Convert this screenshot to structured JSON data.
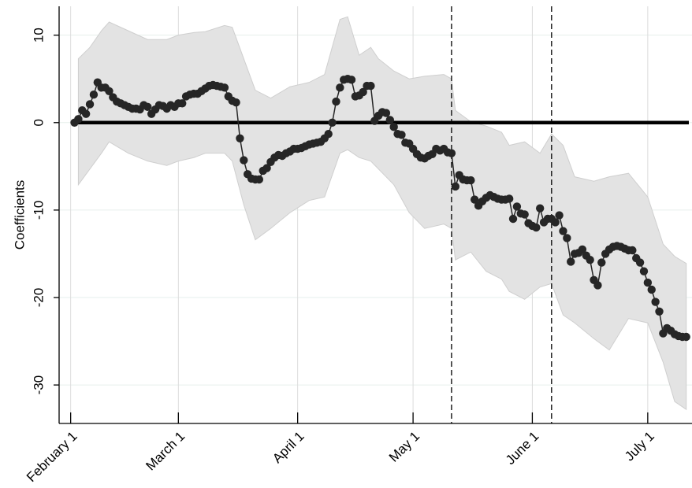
{
  "chart_data": {
    "type": "line",
    "y_label": "Coefficients",
    "x": [
      1,
      2,
      3,
      4,
      5,
      6,
      7,
      8,
      9,
      10,
      11,
      12,
      13,
      14,
      15,
      16,
      17,
      18,
      19,
      20,
      21,
      22,
      23,
      24,
      25,
      26,
      27,
      28,
      29,
      30,
      31,
      32,
      33,
      34,
      35,
      36,
      37,
      38,
      39,
      40,
      41,
      42,
      43,
      44,
      45,
      46,
      47,
      48,
      49,
      50,
      51,
      52,
      53,
      54,
      55,
      56,
      57,
      58,
      59,
      60,
      61,
      62,
      63,
      64,
      65,
      66,
      67,
      68,
      69,
      70,
      71,
      72,
      73,
      74,
      75,
      76,
      77,
      78,
      79,
      80,
      81,
      82,
      83,
      84,
      85,
      86,
      87,
      88,
      89,
      90,
      91,
      92,
      93,
      94,
      95,
      96,
      97,
      98,
      99,
      100,
      101,
      102,
      103,
      104,
      105,
      106,
      107,
      108,
      109,
      110,
      111,
      112,
      113,
      114,
      115,
      116,
      117,
      118,
      119,
      120,
      121,
      122,
      123,
      124,
      125,
      126,
      127,
      128,
      129,
      130,
      131,
      132,
      133,
      134,
      135,
      136,
      137,
      138,
      139,
      140,
      141,
      142,
      143,
      144,
      145,
      146,
      147,
      148,
      149,
      150,
      151,
      152,
      153,
      154,
      155,
      156,
      157,
      158,
      159,
      160
    ],
    "values": [
      0,
      0.4,
      1.4,
      1.0,
      2.1,
      3.2,
      4.6,
      4.0,
      4.0,
      3.6,
      2.9,
      2.4,
      2.2,
      2.0,
      1.8,
      1.6,
      1.6,
      1.5,
      2.0,
      1.8,
      1.0,
      1.5,
      2.0,
      1.9,
      1.6,
      2.0,
      1.8,
      2.2,
      2.2,
      3.0,
      3.2,
      3.3,
      3.3,
      3.6,
      3.9,
      4.2,
      4.3,
      4.2,
      4.1,
      4.0,
      3.0,
      2.5,
      2.3,
      -1.8,
      -4.3,
      -5.9,
      -6.4,
      -6.5,
      -6.5,
      -5.5,
      -5.2,
      -4.5,
      -4.0,
      -3.7,
      -3.8,
      -3.5,
      -3.3,
      -3.0,
      -3.0,
      -2.9,
      -2.7,
      -2.5,
      -2.4,
      -2.3,
      -2.2,
      -1.8,
      -1.3,
      0.0,
      2.4,
      4.0,
      4.9,
      5.0,
      4.9,
      3.0,
      3.1,
      3.5,
      4.2,
      4.2,
      0.2,
      0.8,
      1.2,
      1.1,
      0.3,
      -0.5,
      -1.3,
      -1.4,
      -2.3,
      -2.4,
      -3.0,
      -3.6,
      -4.0,
      -4.1,
      -3.8,
      -3.6,
      -3.0,
      -3.2,
      -3.0,
      -3.4,
      -3.5,
      -7.3,
      -6.0,
      -6.5,
      -6.6,
      -6.6,
      -8.8,
      -9.5,
      -9.0,
      -8.6,
      -8.3,
      -8.5,
      -8.7,
      -8.8,
      -8.8,
      -8.7,
      -11.0,
      -9.6,
      -10.4,
      -10.5,
      -11.5,
      -11.8,
      -12.0,
      -9.8,
      -11.4,
      -11.0,
      -11.0,
      -11.4,
      -10.6,
      -12.4,
      -13.2,
      -15.9,
      -15.0,
      -14.9,
      -14.5,
      -15.2,
      -15.7,
      -18.0,
      -18.6,
      -16.0,
      -15.0,
      -14.5,
      -14.2,
      -14.1,
      -14.2,
      -14.4,
      -14.6,
      -14.6,
      -15.5,
      -16.0,
      -17.0,
      -18.3,
      -19.1,
      -20.5,
      -21.6,
      -24.1,
      -23.5,
      -23.8,
      -24.2,
      -24.4,
      -24.5,
      -24.5
    ],
    "color": "#262626",
    "ci": {
      "x": [
        2,
        5,
        8,
        10,
        15,
        20,
        25,
        28,
        32,
        35,
        40,
        42,
        45,
        48,
        52,
        57,
        62,
        66,
        70,
        72,
        75,
        78,
        80,
        84,
        88,
        92,
        97,
        99,
        100,
        104,
        108,
        112,
        114,
        118,
        122,
        125,
        128,
        131,
        136,
        140,
        145,
        150,
        154,
        157,
        160
      ],
      "upper": [
        7.3,
        8.6,
        10.5,
        11.5,
        10.5,
        9.5,
        9.5,
        10,
        10.3,
        10.4,
        11.1,
        10.9,
        7.3,
        3.7,
        2.8,
        4.1,
        4.6,
        5.5,
        11.8,
        12.1,
        7.7,
        8.6,
        7.3,
        5.9,
        5.0,
        5.3,
        5.5,
        5.0,
        1.4,
        0.1,
        -0.4,
        -1.1,
        -2.6,
        -2.2,
        -3.5,
        -1.3,
        -2.6,
        -6.2,
        -6.7,
        -6.2,
        -5.8,
        -8.5,
        -13.9,
        -15.3,
        -16.1
      ],
      "lower": [
        -7.1,
        -5.3,
        -3.5,
        -2.2,
        -3.5,
        -4.4,
        -4.9,
        -4.4,
        -4.0,
        -3.5,
        -3.5,
        -4.4,
        -9.4,
        -13.4,
        -12.1,
        -10.3,
        -8.9,
        -8.5,
        -3.5,
        -3.1,
        -4.0,
        -4.4,
        -5.3,
        -7.1,
        -10.3,
        -12.1,
        -11.6,
        -12.1,
        -15.7,
        -14.8,
        -17.0,
        -17.9,
        -19.3,
        -20.2,
        -18.8,
        -18.4,
        -22.0,
        -22.9,
        -24.7,
        -26.0,
        -22.4,
        -22.9,
        -27.4,
        -31.9,
        -32.8
      ],
      "color": "#e3e3e3"
    },
    "hline": 0,
    "vlines": [
      99,
      125
    ],
    "xlim": [
      -3,
      161.5
    ],
    "xticks": [
      {
        "value": 0,
        "label": "February 1"
      },
      {
        "value": 28,
        "label": "March 1"
      },
      {
        "value": 59,
        "label": "April 1"
      },
      {
        "value": 89,
        "label": "May 1"
      },
      {
        "value": 120,
        "label": "June 1"
      },
      {
        "value": 150,
        "label": "July 1"
      }
    ],
    "ylim": [
      -34.4,
      13.3
    ],
    "yticks": [
      -30,
      -20,
      -10,
      0,
      10
    ],
    "grid": true
  }
}
